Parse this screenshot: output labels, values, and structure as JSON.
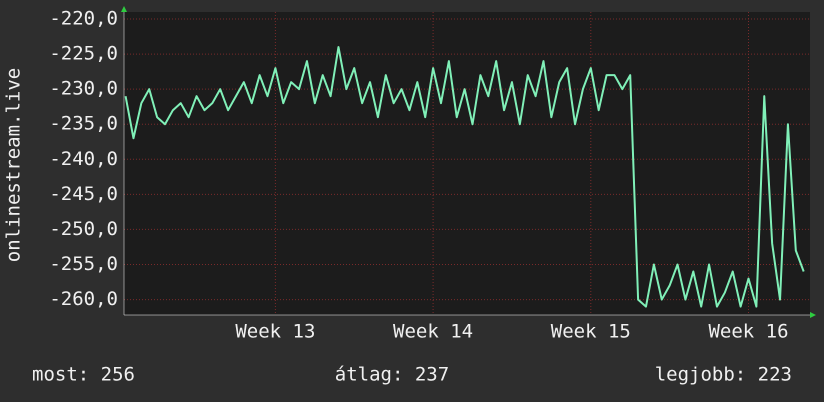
{
  "chart_data": {
    "type": "line",
    "ylabel": "onlinestream.live",
    "xlim": [
      12.04,
      16.39
    ],
    "xticks": [
      {
        "value": 13,
        "label": "Week 13"
      },
      {
        "value": 14,
        "label": "Week 14"
      },
      {
        "value": 15,
        "label": "Week 15"
      },
      {
        "value": 16,
        "label": "Week 16"
      }
    ],
    "ylim": [
      -262.2,
      -219
    ],
    "yticks": [
      {
        "value": -220,
        "label": "-220,0"
      },
      {
        "value": -225,
        "label": "-225,0"
      },
      {
        "value": -230,
        "label": "-230,0"
      },
      {
        "value": -235,
        "label": "-235,0"
      },
      {
        "value": -240,
        "label": "-240,0"
      },
      {
        "value": -245,
        "label": "-245,0"
      },
      {
        "value": -250,
        "label": "-250,0"
      },
      {
        "value": -255,
        "label": "-255,0"
      },
      {
        "value": -260,
        "label": "-260,0"
      }
    ],
    "grid": true,
    "x": [
      12.05,
      12.1,
      12.15,
      12.2,
      12.25,
      12.3,
      12.35,
      12.4,
      12.45,
      12.5,
      12.55,
      12.6,
      12.65,
      12.7,
      12.75,
      12.8,
      12.85,
      12.9,
      12.95,
      13,
      13.05,
      13.1,
      13.15,
      13.2,
      13.25,
      13.3,
      13.35,
      13.4,
      13.45,
      13.5,
      13.55,
      13.6,
      13.65,
      13.7,
      13.75,
      13.8,
      13.85,
      13.9,
      13.95,
      14,
      14.05,
      14.1,
      14.15,
      14.2,
      14.25,
      14.3,
      14.35,
      14.4,
      14.45,
      14.5,
      14.55,
      14.6,
      14.65,
      14.7,
      14.75,
      14.8,
      14.85,
      14.9,
      14.95,
      15,
      15.05,
      15.1,
      15.15,
      15.2,
      15.25,
      15.3,
      15.35,
      15.4,
      15.45,
      15.5,
      15.55,
      15.6,
      15.65,
      15.7,
      15.75,
      15.8,
      15.85,
      15.9,
      15.95,
      16,
      16.05,
      16.1,
      16.15,
      16.2,
      16.25,
      16.3,
      16.35
    ],
    "series": [
      {
        "color": "#80f0b8",
        "values": [
          -231,
          -237,
          -232,
          -230,
          -234,
          -235,
          -233,
          -232,
          -234,
          -231,
          -233,
          -232,
          -230,
          -233,
          -231,
          -229,
          -232,
          -228,
          -231,
          -227,
          -232,
          -229,
          -230,
          -226,
          -232,
          -228,
          -231,
          -224,
          -230,
          -227,
          -232,
          -229,
          -234,
          -228,
          -232,
          -230,
          -233,
          -229,
          -234,
          -227,
          -232,
          -226,
          -234,
          -230,
          -235,
          -228,
          -231,
          -226,
          -233,
          -229,
          -235,
          -228,
          -231,
          -226,
          -234,
          -229,
          -227,
          -235,
          -230,
          -227,
          -233,
          -228,
          -228,
          -230,
          -228,
          -260,
          -261,
          -255,
          -260,
          -258,
          -255,
          -260,
          -256,
          -261,
          -255,
          -261,
          -259,
          -256,
          -261,
          -257,
          -261,
          -231,
          -252,
          -260,
          -235,
          -253,
          -256
        ]
      }
    ],
    "footer": [
      "most: 256",
      "átlag: 237",
      "legjobb: 223"
    ]
  }
}
